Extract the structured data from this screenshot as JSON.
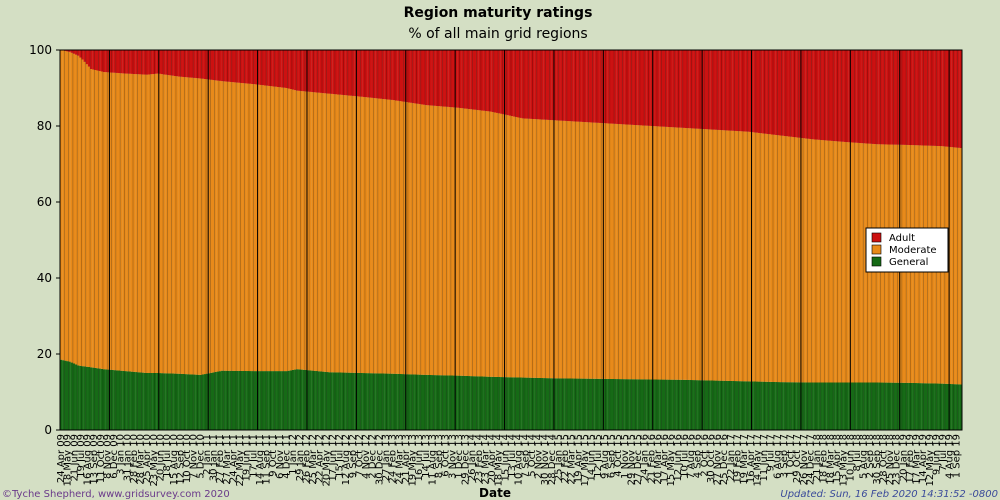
{
  "chart_data": {
    "type": "stacked-bar",
    "title": "Region maturity ratings",
    "subtitle": "% of all main grid regions",
    "xlabel": "Date",
    "ylabel": "",
    "ylim": [
      0,
      100
    ],
    "yticks": [
      0,
      20,
      40,
      60,
      80,
      100
    ],
    "legend": {
      "position": "right",
      "entries": [
        {
          "name": "Adult",
          "color": "#cc1111"
        },
        {
          "name": "Moderate",
          "color": "#e88a1a"
        },
        {
          "name": "General",
          "color": "#166a16"
        }
      ]
    },
    "anchor_points": [
      {
        "index": 0,
        "general": 18.5,
        "moderate_top": 100
      },
      {
        "index": 4,
        "general": 18.0,
        "moderate_top": 99.5
      },
      {
        "index": 8,
        "general": 17.0,
        "moderate_top": 98.5
      },
      {
        "index": 10,
        "general": 16.8,
        "moderate_top": 97.5
      },
      {
        "index": 14,
        "general": 16.5,
        "moderate_top": 95.0
      },
      {
        "index": 20,
        "general": 16.0,
        "moderate_top": 94.2
      },
      {
        "index": 30,
        "general": 15.5,
        "moderate_top": 93.8
      },
      {
        "index": 40,
        "general": 15.0,
        "moderate_top": 93.5
      },
      {
        "index": 45,
        "general": 15.0,
        "moderate_top": 93.8
      },
      {
        "index": 55,
        "general": 14.8,
        "moderate_top": 93.0
      },
      {
        "index": 65,
        "general": 14.5,
        "moderate_top": 92.5
      },
      {
        "index": 75,
        "general": 15.6,
        "moderate_top": 91.8
      },
      {
        "index": 90,
        "general": 15.5,
        "moderate_top": 91.0
      },
      {
        "index": 105,
        "general": 15.5,
        "moderate_top": 90.0
      },
      {
        "index": 110,
        "general": 16.0,
        "moderate_top": 89.3
      },
      {
        "index": 125,
        "general": 15.2,
        "moderate_top": 88.5
      },
      {
        "index": 140,
        "general": 15.0,
        "moderate_top": 87.7
      },
      {
        "index": 155,
        "general": 14.8,
        "moderate_top": 86.8
      },
      {
        "index": 170,
        "general": 14.5,
        "moderate_top": 85.5
      },
      {
        "index": 185,
        "general": 14.3,
        "moderate_top": 84.8
      },
      {
        "index": 200,
        "general": 14.0,
        "moderate_top": 83.8
      },
      {
        "index": 215,
        "general": 13.8,
        "moderate_top": 82.0
      },
      {
        "index": 230,
        "general": 13.6,
        "moderate_top": 81.5
      },
      {
        "index": 245,
        "general": 13.5,
        "moderate_top": 81.0
      },
      {
        "index": 260,
        "general": 13.4,
        "moderate_top": 80.5
      },
      {
        "index": 275,
        "general": 13.3,
        "moderate_top": 80.0
      },
      {
        "index": 290,
        "general": 13.2,
        "moderate_top": 79.5
      },
      {
        "index": 305,
        "general": 13.0,
        "moderate_top": 79.0
      },
      {
        "index": 320,
        "general": 12.8,
        "moderate_top": 78.5
      },
      {
        "index": 335,
        "general": 12.6,
        "moderate_top": 77.5
      },
      {
        "index": 350,
        "general": 12.5,
        "moderate_top": 76.5
      },
      {
        "index": 365,
        "general": 12.5,
        "moderate_top": 75.8
      },
      {
        "index": 380,
        "general": 12.5,
        "moderate_top": 75.2
      },
      {
        "index": 395,
        "general": 12.4,
        "moderate_top": 75.0
      },
      {
        "index": 410,
        "general": 12.2,
        "moderate_top": 74.7
      },
      {
        "index": 419,
        "general": 12.0,
        "moderate_top": 74.2
      }
    ],
    "bar_count": 420,
    "x_tick_labels": [
      "24 Apr 09",
      "18 May 09",
      "21 Jun 09",
      "19 Jul 09",
      "16 Aug 09",
      "13 Sep 09",
      "11 Oct 09",
      "8 Nov 09",
      "6 Dec 09",
      "3 Jan 10",
      "31 Jan 10",
      "28 Feb 10",
      "28 Mar 10",
      "25 Apr 10",
      "23 May 10",
      "20 Jun 10",
      "18 Jul 10",
      "15 Aug 10",
      "12 Sep 10",
      "10 Oct 10",
      "7 Nov 10",
      "5 Dec 10",
      "2 Jan 11",
      "30 Jan 11",
      "27 Feb 11",
      "27 Mar 11",
      "24 Apr 11",
      "22 May 11",
      "19 Jun 11",
      "17 Jul 11",
      "14 Aug 11",
      "11 Sep 11",
      "9 Oct 11",
      "6 Nov 11",
      "4 Dec 11",
      "1 Jan 12",
      "29 Jan 12",
      "26 Feb 12",
      "25 Mar 12",
      "22 Apr 12",
      "20 May 12",
      "17 Jun 12",
      "15 Jul 12",
      "12 Aug 12",
      "9 Sep 12",
      "7 Oct 12",
      "4 Nov 12",
      "2 Dec 12",
      "30 Dec 12",
      "27 Jan 13",
      "24 Feb 13",
      "24 Mar 13",
      "21 Apr 13",
      "19 May 13",
      "16 Jun 13",
      "14 Jul 13",
      "11 Aug 13",
      "8 Sep 13",
      "6 Oct 13",
      "3 Nov 13",
      "1 Dec 13",
      "29 Dec 13",
      "26 Jan 14",
      "23 Feb 14",
      "23 Mar 14",
      "20 Apr 14",
      "18 May 14",
      "15 Jun 14",
      "13 Jul 14",
      "10 Aug 14",
      "7 Sep 14",
      "5 Oct 14",
      "2 Nov 14",
      "30 Nov 14",
      "28 Dec 14",
      "25 Jan 15",
      "22 Feb 15",
      "22 Mar 15",
      "19 Apr 15",
      "17 May 15",
      "14 Jun 15",
      "12 Jul 15",
      "9 Aug 15",
      "6 Sep 15",
      "4 Oct 15",
      "1 Nov 15",
      "29 Nov 15",
      "27 Dec 15",
      "24 Jan 16",
      "21 Feb 16",
      "20 Mar 16",
      "17 Apr 16",
      "15 May 16",
      "12 Jun 16",
      "10 Jul 16",
      "7 Aug 16",
      "4 Sep 16",
      "2 Oct 16",
      "30 Oct 16",
      "27 Nov 16",
      "25 Dec 16",
      "22 Jan 17",
      "19 Feb 17",
      "19 Mar 17",
      "16 Apr 17",
      "14 May 17",
      "11 Jun 17",
      "9 Jul 17",
      "6 Aug 17",
      "3 Sep 17",
      "1 Oct 17",
      "29 Oct 17",
      "26 Nov 17",
      "24 Dec 17",
      "21 Jan 18",
      "18 Feb 18",
      "18 Mar 18",
      "15 Apr 18",
      "13 May 18",
      "10 Jun 18",
      "8 Jul 18",
      "5 Aug 18",
      "2 Sep 18",
      "30 Sep 18",
      "28 Oct 18",
      "25 Nov 18",
      "23 Dec 18",
      "20 Jan 19",
      "17 Feb 19",
      "17 Mar 19",
      "14 Apr 19",
      "12 May 19",
      "9 Jun 19",
      "7 Jul 19",
      "4 Aug 19",
      "1 Sep 19"
    ]
  },
  "footer": {
    "copyright": "©Tyche Shepherd, www.gridsurvey.com 2020",
    "updated": "Updated: Sun, 16 Feb 2020 14:31:52 -0800"
  },
  "colors": {
    "background": "#d4dfc4",
    "plot_bg": "#d4dfc4",
    "adult": "#cc1111",
    "moderate": "#e88a1a",
    "general": "#166a16"
  }
}
